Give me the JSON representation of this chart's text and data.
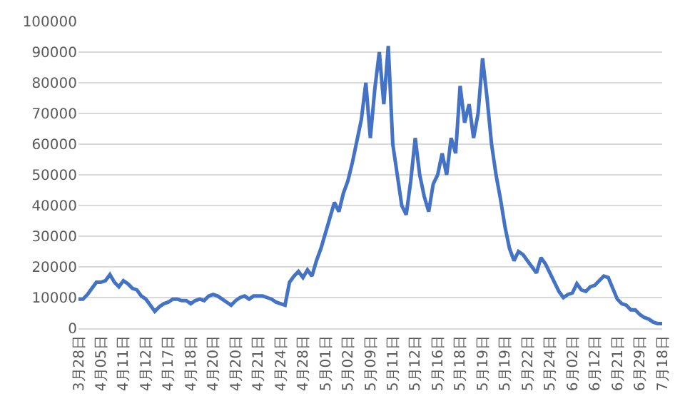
{
  "chart_data": {
    "type": "line",
    "categories": [
      "3月28日",
      null,
      null,
      null,
      null,
      "4月05日",
      null,
      null,
      null,
      null,
      "4月11日",
      null,
      null,
      null,
      null,
      "4月12日",
      null,
      null,
      null,
      null,
      "4月17日",
      null,
      null,
      null,
      null,
      "4月18日",
      null,
      null,
      null,
      null,
      "4月20日",
      null,
      null,
      null,
      null,
      "4月20日",
      null,
      null,
      null,
      null,
      "4月21日",
      null,
      null,
      null,
      null,
      "4月24日",
      null,
      null,
      null,
      null,
      "4月28日",
      null,
      null,
      null,
      null,
      "5月01日",
      null,
      null,
      null,
      null,
      "5月02日",
      null,
      null,
      null,
      null,
      "5月09日",
      null,
      null,
      null,
      null,
      "5月11日",
      null,
      null,
      null,
      null,
      "5月12日",
      null,
      null,
      null,
      null,
      "5月16日",
      null,
      null,
      null,
      null,
      "5月18日",
      null,
      null,
      null,
      null,
      "5月19日",
      null,
      null,
      null,
      null,
      "5月19日",
      null,
      null,
      null,
      null,
      "5月22日",
      null,
      null,
      null,
      null,
      "5月24日",
      null,
      null,
      null,
      null,
      "6月02日",
      null,
      null,
      null,
      null,
      "6月12日",
      null,
      null,
      null,
      null,
      "6月21日",
      null,
      null,
      null,
      null,
      "6月29日",
      null,
      null,
      null,
      null,
      "7月18日"
    ],
    "series": [
      {
        "color": "#4472c4",
        "values": [
          9500,
          9500,
          11000,
          13000,
          15000,
          15000,
          15500,
          17500,
          15000,
          13500,
          15500,
          14500,
          13000,
          12500,
          10500,
          9500,
          7500,
          5500,
          7000,
          8000,
          8500,
          9500,
          9500,
          9000,
          9000,
          8000,
          9000,
          9500,
          9000,
          10500,
          11000,
          10500,
          9500,
          8500,
          7500,
          9000,
          10000,
          10500,
          9500,
          10500,
          10500,
          10500,
          10000,
          9500,
          8500,
          8000,
          7500,
          15000,
          17000,
          18500,
          16500,
          19000,
          17000,
          22000,
          26000,
          31000,
          36000,
          41000,
          38000,
          44000,
          48000,
          54000,
          61000,
          68000,
          80000,
          62000,
          78000,
          90000,
          73000,
          92000,
          60000,
          50000,
          40000,
          37000,
          48000,
          62000,
          50000,
          43000,
          38000,
          47000,
          50000,
          57000,
          50000,
          62000,
          57000,
          79000,
          67000,
          73000,
          62000,
          70000,
          88000,
          75000,
          60000,
          50000,
          42000,
          33000,
          26000,
          22000,
          25000,
          24000,
          22000,
          20000,
          18000,
          23000,
          21000,
          18000,
          15000,
          12000,
          10000,
          11000,
          11500,
          14500,
          12500,
          12000,
          13500,
          14000,
          15500,
          17000,
          16500,
          13000,
          9500,
          8000,
          7500,
          6000,
          6000,
          4500,
          3500,
          3000,
          2000,
          1500,
          1500
        ]
      }
    ],
    "ylim": [
      0,
      100000
    ],
    "yticks": [
      0,
      10000,
      20000,
      30000,
      40000,
      50000,
      60000,
      70000,
      80000,
      90000,
      100000
    ],
    "grid": "y",
    "legend": false
  }
}
